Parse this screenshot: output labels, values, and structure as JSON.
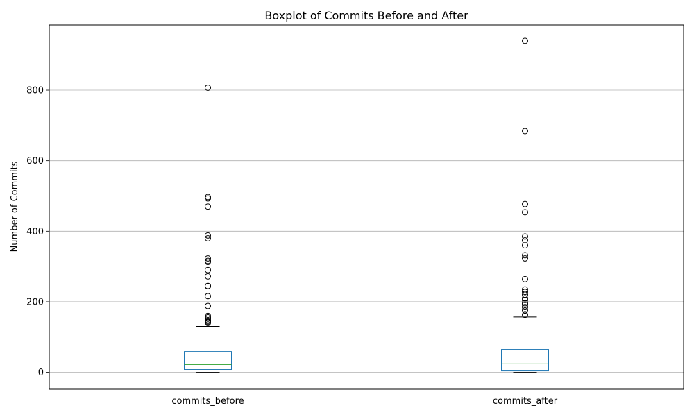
{
  "chart_data": {
    "type": "boxplot",
    "title": "Boxplot of Commits Before and After",
    "xlabel": "",
    "ylabel": "Number of Commits",
    "ylim": [
      -48,
      985
    ],
    "yticks": [
      0,
      200,
      400,
      600,
      800
    ],
    "grid": true,
    "categories": [
      "commits_before",
      "commits_after"
    ],
    "boxes": [
      {
        "category": "commits_before",
        "whisker_low": 0,
        "q1": 8,
        "median": 22,
        "q3": 59,
        "whisker_high": 130,
        "outliers": [
          807,
          497,
          493,
          470,
          388,
          380,
          323,
          316,
          313,
          290,
          272,
          245,
          244,
          216,
          188,
          160,
          156,
          152,
          148,
          146,
          143,
          140
        ]
      },
      {
        "category": "commits_after",
        "whisker_low": 0,
        "q1": 4,
        "median": 24,
        "q3": 65,
        "whisker_high": 157,
        "outliers": [
          940,
          684,
          477,
          454,
          385,
          374,
          360,
          332,
          323,
          264,
          235,
          228,
          220,
          210,
          205,
          196,
          192,
          185,
          175,
          163
        ]
      }
    ],
    "colors": {
      "box": "#1f77b4",
      "median": "#2ca02c",
      "whisker_cap": "#000000",
      "outlier": "#000000",
      "grid": "#b0b0b0"
    }
  }
}
